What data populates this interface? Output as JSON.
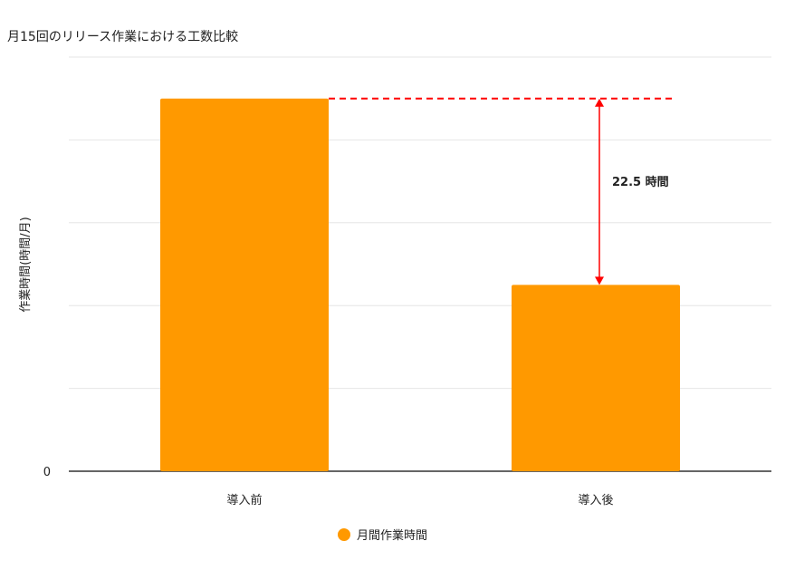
{
  "chart_data": {
    "type": "bar",
    "title": "月15回のリリース作業における工数比較",
    "xlabel": "",
    "ylabel": "作業時間(時間/月)",
    "categories": [
      "導入前",
      "導入後"
    ],
    "series": [
      {
        "name": "月間作業時間",
        "values": [
          45,
          22.5
        ],
        "color": "#FF9900"
      }
    ],
    "ylim": [
      0,
      50
    ],
    "yticks_labeled": [
      0
    ],
    "gridlines": [
      10,
      20,
      30,
      40,
      50
    ],
    "grid": true,
    "legend": "bottom",
    "annotation": {
      "text": "22.5 時間",
      "from": 45,
      "to": 22.5,
      "line_color": "#FF0000"
    }
  }
}
